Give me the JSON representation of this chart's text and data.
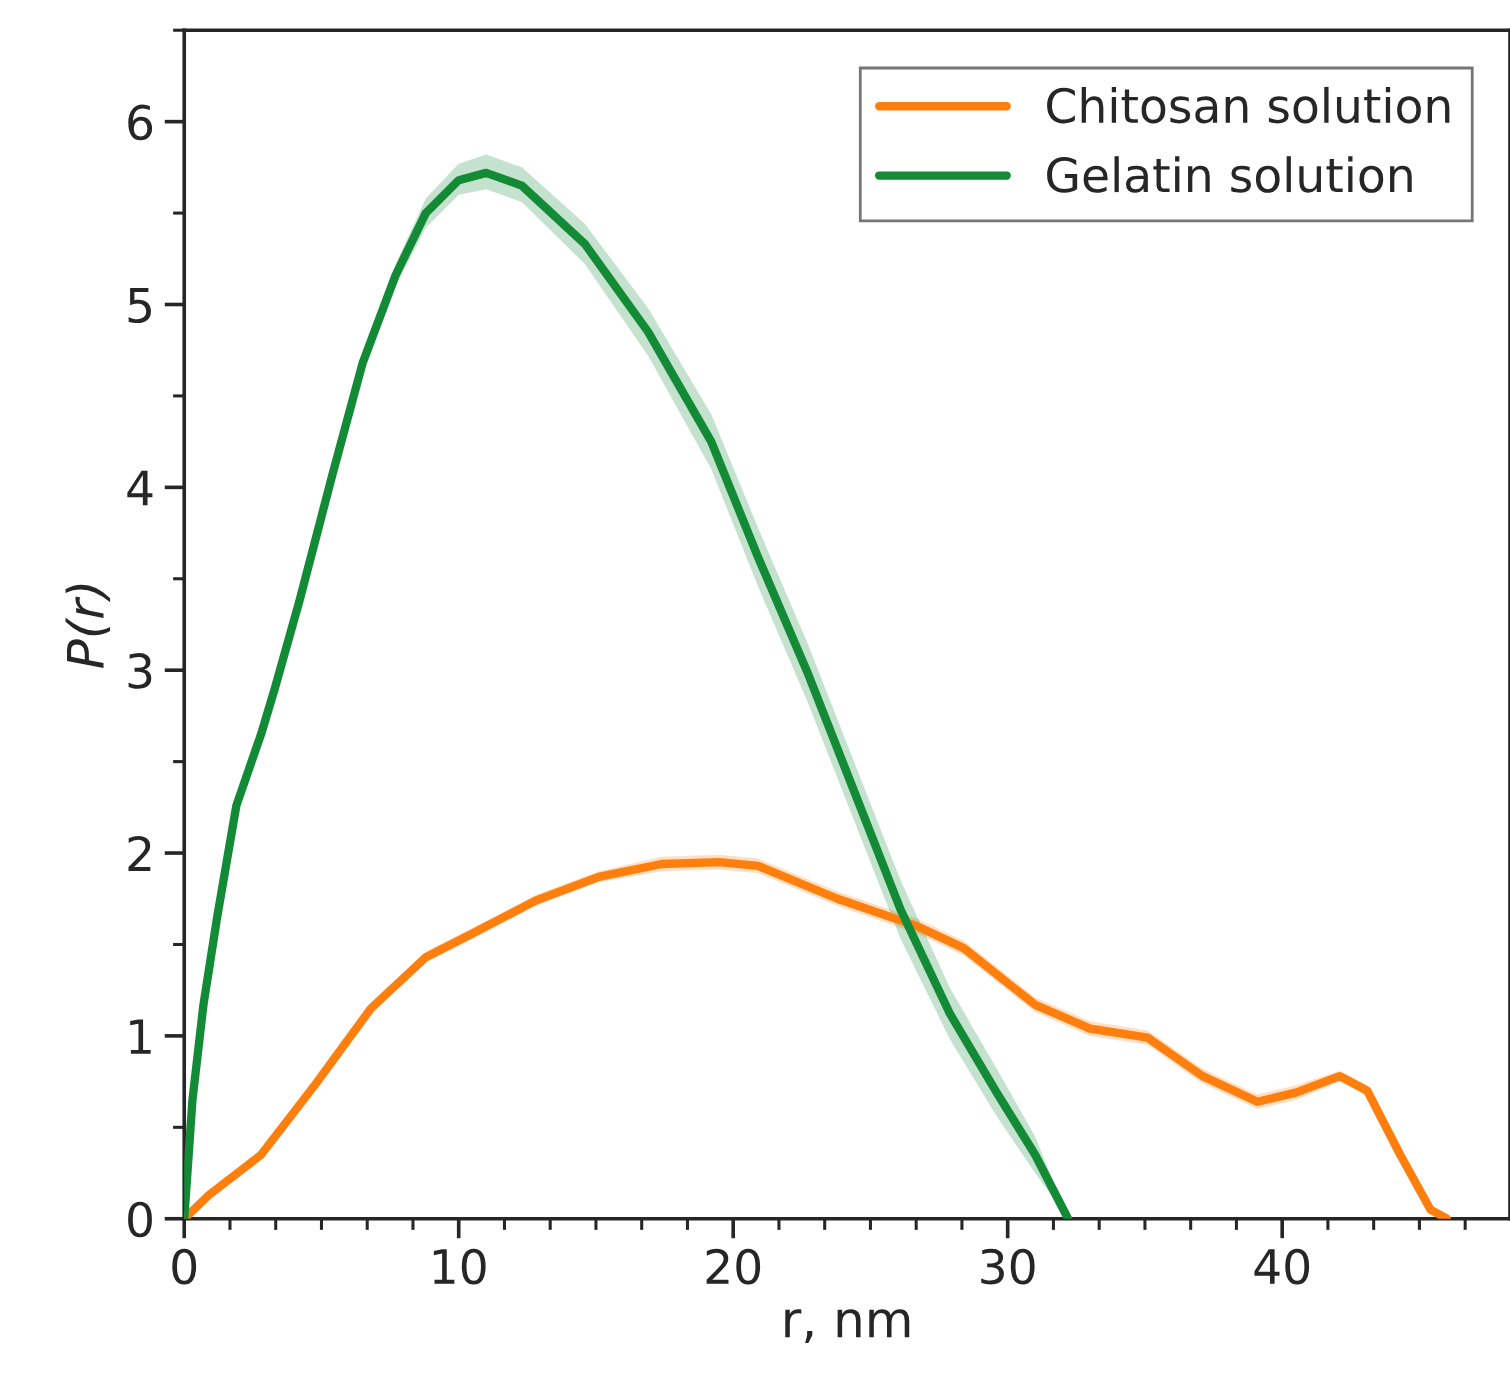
{
  "chart_data": {
    "type": "line",
    "xlabel": "r, nm",
    "ylabel": "P(r)",
    "xlim": [
      0,
      48.3
    ],
    "xticks": [
      0,
      10,
      20,
      30,
      40
    ],
    "ylim": [
      0,
      6.5
    ],
    "yticks": [
      0,
      1,
      2,
      3,
      4,
      5,
      6
    ],
    "grid": false,
    "legend": "top right",
    "line_style": "solid",
    "marker": "none",
    "series": [
      {
        "name": "Chitosan solution",
        "color": "#ff7f0e",
        "x": [
          0,
          0.9,
          2.8,
          4.8,
          6.8,
          8.8,
          10.5,
          12.8,
          15.1,
          17.4,
          19.5,
          20.9,
          23.8,
          26.7,
          28.4,
          31.0,
          33.0,
          35.1,
          37.1,
          39.1,
          40.5,
          42.1,
          43.1,
          44.3,
          45.4,
          46.0
        ],
        "values": [
          0,
          0.13,
          0.35,
          0.74,
          1.15,
          1.43,
          1.56,
          1.74,
          1.87,
          1.94,
          1.95,
          1.93,
          1.75,
          1.6,
          1.48,
          1.17,
          1.04,
          0.99,
          0.78,
          0.64,
          0.69,
          0.78,
          0.7,
          0.35,
          0.05,
          0
        ],
        "lower": [
          0,
          0.12,
          0.33,
          0.71,
          1.12,
          1.4,
          1.53,
          1.71,
          1.84,
          1.9,
          1.91,
          1.89,
          1.71,
          1.56,
          1.44,
          1.13,
          1.0,
          0.95,
          0.74,
          0.6,
          0.65,
          0.75,
          0.67,
          0.33,
          0.04,
          0
        ],
        "upper": [
          0,
          0.14,
          0.37,
          0.77,
          1.18,
          1.46,
          1.59,
          1.77,
          1.9,
          1.98,
          1.99,
          1.97,
          1.79,
          1.64,
          1.52,
          1.21,
          1.08,
          1.03,
          0.82,
          0.68,
          0.73,
          0.81,
          0.73,
          0.37,
          0.06,
          0
        ]
      },
      {
        "name": "Gelatin solution",
        "color": "#138a36",
        "x": [
          0,
          0.3,
          0.7,
          1.2,
          1.9,
          2.5,
          2.8,
          3.3,
          4.2,
          5.4,
          6.5,
          7.7,
          8.8,
          10.0,
          11.0,
          12.3,
          14.6,
          16.9,
          19.2,
          20.9,
          22.7,
          24.4,
          26.1,
          27.9,
          29.6,
          31.0,
          32.2
        ],
        "values": [
          0,
          0.65,
          1.17,
          1.65,
          2.26,
          2.52,
          2.65,
          2.9,
          3.38,
          4.07,
          4.68,
          5.16,
          5.5,
          5.68,
          5.72,
          5.65,
          5.33,
          4.85,
          4.25,
          3.62,
          2.99,
          2.34,
          1.69,
          1.12,
          0.69,
          0.35,
          0
        ],
        "lower": [
          0,
          0.63,
          1.15,
          1.63,
          2.24,
          2.5,
          2.63,
          2.88,
          3.36,
          4.04,
          4.64,
          5.1,
          5.42,
          5.6,
          5.63,
          5.56,
          5.22,
          4.72,
          4.1,
          3.46,
          2.83,
          2.18,
          1.53,
          0.98,
          0.56,
          0.25,
          0
        ],
        "upper": [
          0,
          0.67,
          1.19,
          1.67,
          2.28,
          2.54,
          2.67,
          2.92,
          3.4,
          4.1,
          4.72,
          5.22,
          5.58,
          5.77,
          5.82,
          5.75,
          5.44,
          4.98,
          4.4,
          3.78,
          3.15,
          2.5,
          1.85,
          1.26,
          0.82,
          0.45,
          0
        ]
      }
    ]
  }
}
